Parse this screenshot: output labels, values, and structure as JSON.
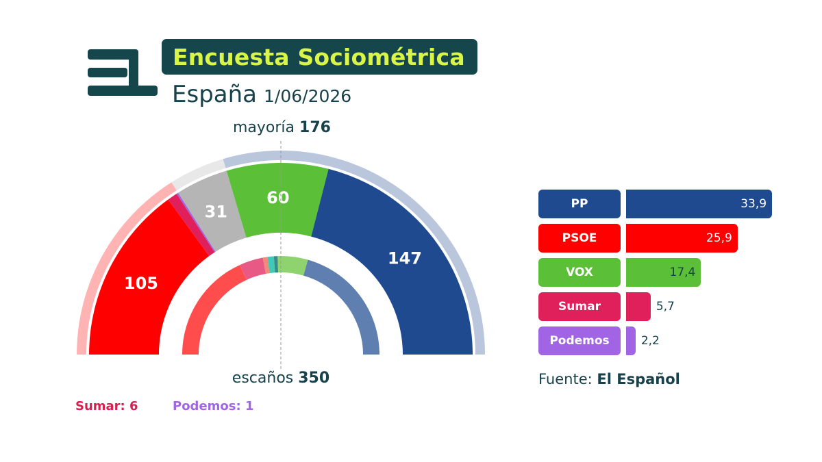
{
  "header": {
    "title": "Encuesta Sociométrica",
    "region": "España",
    "date": "1/06/2026"
  },
  "colors": {
    "brand_dark": "#15464c",
    "brand_accent": "#d9f54a",
    "PP": "#1f4a8f",
    "PSOE": "#ff0000",
    "VOX": "#5bbf38",
    "Sumar": "#e0205a",
    "Podemos": "#a064e4",
    "Others": "#b5b5b5"
  },
  "parliament": {
    "majority_label": "mayoría",
    "majority_value": "176",
    "seats_label": "escaños",
    "seats_value": "350"
  },
  "footnotes": {
    "sumar": "Sumar: 6",
    "podemos": "Podemos: 1"
  },
  "source": {
    "label": "Fuente:",
    "value": "El Español"
  },
  "chart_data": [
    {
      "type": "pie",
      "variant": "half-donut parliament seats",
      "total_seats": 350,
      "majority": 176,
      "segments": [
        {
          "party": "PSOE",
          "seats": 105,
          "label": "105",
          "color": "#ff0000"
        },
        {
          "party": "Sumar",
          "seats": 6,
          "label": "",
          "color": "#e0205a"
        },
        {
          "party": "Podemos",
          "seats": 1,
          "label": "",
          "color": "#a064e4"
        },
        {
          "party": "Others",
          "seats": 31,
          "label": "31",
          "color": "#b5b5b5"
        },
        {
          "party": "VOX",
          "seats": 60,
          "label": "60",
          "color": "#5bbf38"
        },
        {
          "party": "PP",
          "seats": 147,
          "label": "147",
          "color": "#1f4a8f"
        }
      ],
      "outer_blocks": [
        {
          "bloc": "left",
          "seats": 112,
          "color": "#ffb3b3"
        },
        {
          "bloc": "other",
          "seats": 31,
          "color": "#e8e8e8"
        },
        {
          "bloc": "right",
          "seats": 207,
          "color": "#b9c6dc"
        }
      ],
      "previous_election_seats": [
        {
          "party": "PSOE",
          "seats": 121,
          "color": "#ff4d4d"
        },
        {
          "party": "Sumar",
          "seats": 26,
          "color": "#e85a85"
        },
        {
          "party": "Others A",
          "seats": 5,
          "color": "#f08a7a"
        },
        {
          "party": "Others B",
          "seats": 7,
          "color": "#40c9b4"
        },
        {
          "party": "Others C",
          "seats": 4,
          "color": "#3a8a8a"
        },
        {
          "party": "VOX",
          "seats": 33,
          "color": "#8fd36f"
        },
        {
          "party": "PP",
          "seats": 137,
          "color": "#5f7fb0"
        }
      ]
    },
    {
      "type": "bar",
      "orientation": "horizontal",
      "title": "",
      "xlim": [
        0,
        35
      ],
      "categories": [
        "PP",
        "PSOE",
        "VOX",
        "Sumar",
        "Podemos"
      ],
      "values": [
        33.9,
        25.9,
        17.4,
        5.7,
        2.2
      ],
      "value_labels": [
        "33,9",
        "25,9",
        "17,4",
        "5,7",
        "2,2"
      ],
      "colors": [
        "#1f4a8f",
        "#ff0000",
        "#5bbf38",
        "#e0205a",
        "#a064e4"
      ]
    }
  ]
}
